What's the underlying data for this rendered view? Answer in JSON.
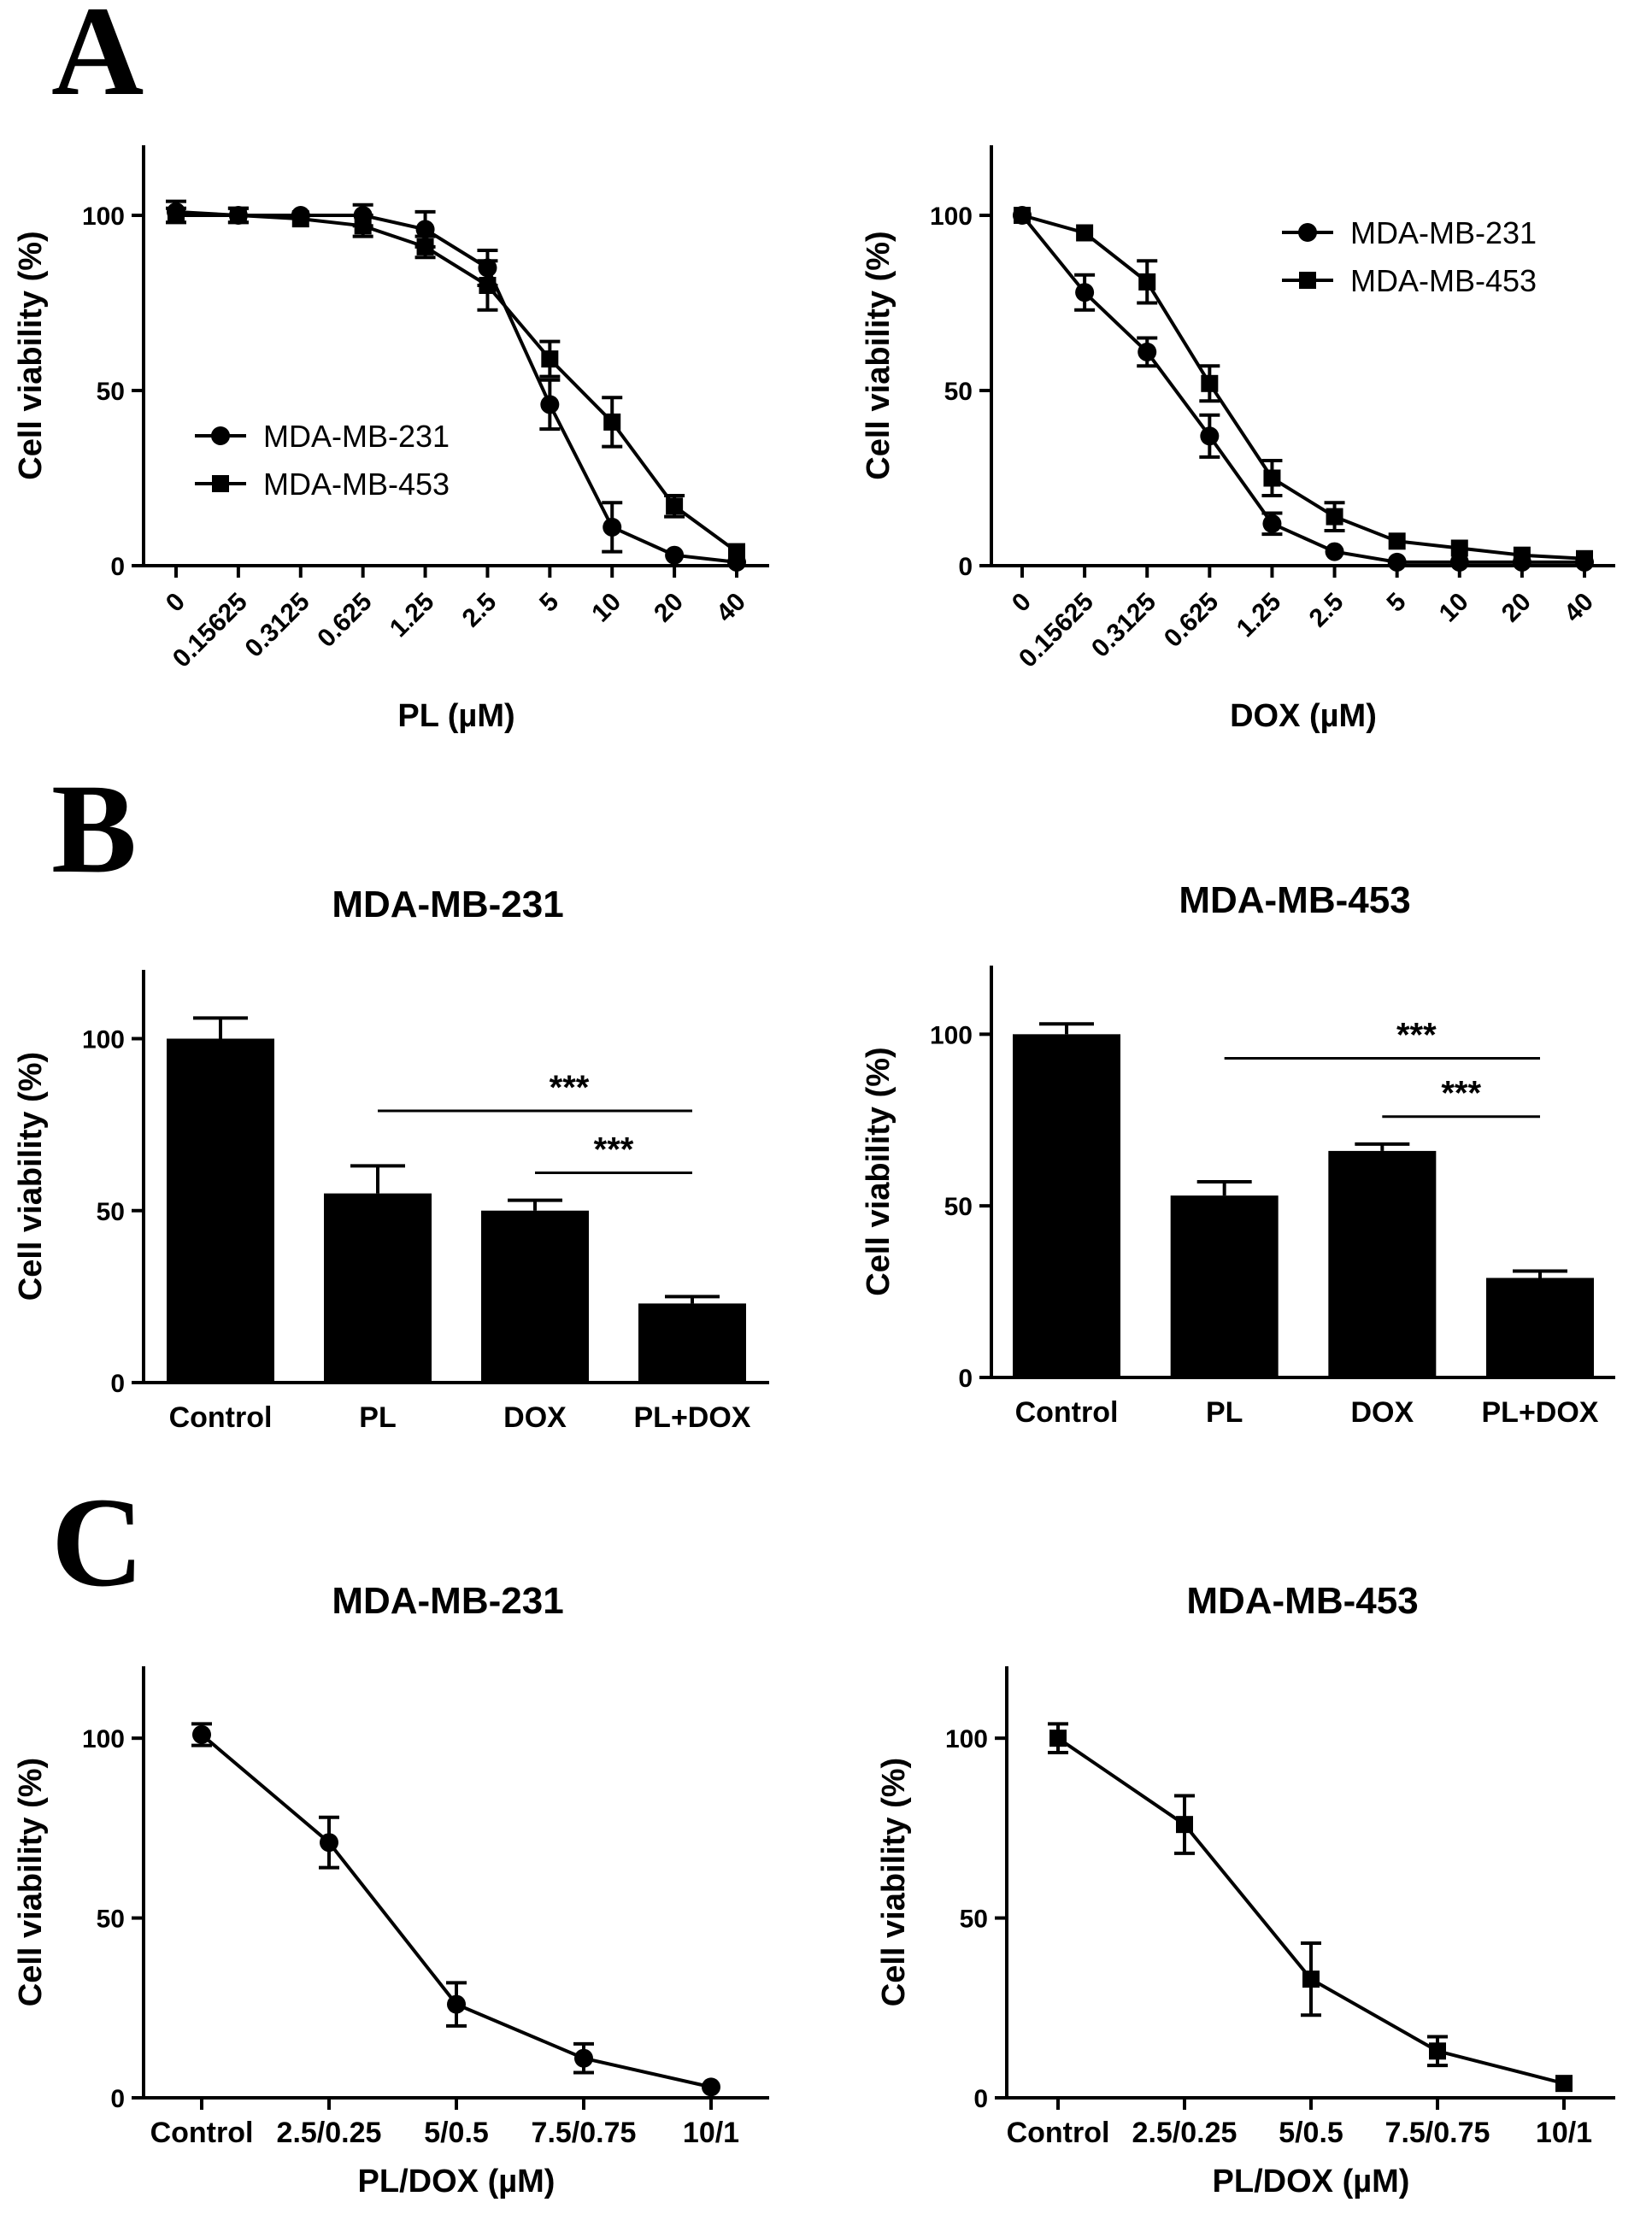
{
  "panels": {
    "a": "A",
    "b": "B",
    "c": "C"
  },
  "chart_data": [
    {
      "id": "A1",
      "panel": "A",
      "type": "line",
      "title": "",
      "xlabel": "PL (µM)",
      "ylabel": "Cell viability (%)",
      "ylim": [
        0,
        120
      ],
      "yticks": [
        0,
        50,
        100
      ],
      "categories": [
        "0",
        "0.15625",
        "0.3125",
        "0.625",
        "1.25",
        "2.5",
        "5",
        "10",
        "20",
        "40"
      ],
      "legend": "middle-left",
      "series": [
        {
          "name": "MDA-MB-231",
          "marker": "circle",
          "values": [
            101,
            100,
            100,
            100,
            96,
            85,
            46,
            11,
            3,
            1
          ],
          "errors": [
            3,
            2,
            1,
            3,
            5,
            5,
            7,
            7,
            1,
            1
          ]
        },
        {
          "name": "MDA-MB-453",
          "marker": "square",
          "values": [
            100,
            100,
            99,
            97,
            91,
            80,
            59,
            41,
            17,
            4
          ],
          "errors": [
            2,
            2,
            1,
            3,
            3,
            7,
            5,
            7,
            3,
            1
          ]
        }
      ]
    },
    {
      "id": "A2",
      "panel": "A",
      "type": "line",
      "title": "",
      "xlabel": "DOX (µM)",
      "ylabel": "Cell viability (%)",
      "ylim": [
        0,
        120
      ],
      "yticks": [
        0,
        50,
        100
      ],
      "categories": [
        "0",
        "0.15625",
        "0.3125",
        "0.625",
        "1.25",
        "2.5",
        "5",
        "10",
        "20",
        "40"
      ],
      "legend": "top-right",
      "series": [
        {
          "name": "MDA-MB-231",
          "marker": "circle",
          "values": [
            100,
            78,
            61,
            37,
            12,
            4,
            1,
            1,
            1,
            1
          ],
          "errors": [
            1,
            5,
            4,
            6,
            3,
            1,
            1,
            1,
            1,
            1
          ]
        },
        {
          "name": "MDA-MB-453",
          "marker": "square",
          "values": [
            100,
            95,
            81,
            52,
            25,
            14,
            7,
            5,
            3,
            2
          ],
          "errors": [
            1,
            1,
            6,
            5,
            5,
            4,
            1,
            1,
            1,
            1
          ]
        }
      ]
    },
    {
      "id": "B1",
      "panel": "B",
      "type": "bar",
      "title": "MDA-MB-231",
      "xlabel": "",
      "ylabel": "Cell viability (%)",
      "ylim": [
        0,
        120
      ],
      "yticks": [
        0,
        50,
        100
      ],
      "categories": [
        "Control",
        "PL",
        "DOX",
        "PL+DOX"
      ],
      "values": [
        100,
        55,
        50,
        23
      ],
      "errors": [
        6,
        8,
        3,
        2
      ],
      "significance": [
        {
          "from": 1,
          "to": 3,
          "label": "***",
          "level": 79
        },
        {
          "from": 2,
          "to": 3,
          "label": "***",
          "level": 61
        }
      ]
    },
    {
      "id": "B2",
      "panel": "B",
      "type": "bar",
      "title": "MDA-MB-453",
      "xlabel": "",
      "ylabel": "Cell viability (%)",
      "ylim": [
        0,
        120
      ],
      "yticks": [
        0,
        50,
        100
      ],
      "categories": [
        "Control",
        "PL",
        "DOX",
        "PL+DOX"
      ],
      "values": [
        100,
        53,
        66,
        29
      ],
      "errors": [
        3,
        4,
        2,
        2
      ],
      "significance": [
        {
          "from": 1,
          "to": 3,
          "label": "***",
          "level": 93
        },
        {
          "from": 2,
          "to": 3,
          "label": "***",
          "level": 76
        }
      ]
    },
    {
      "id": "C1",
      "panel": "C",
      "type": "line",
      "title": "MDA-MB-231",
      "xlabel": "PL/DOX (µM)",
      "ylabel": "Cell viability (%)",
      "ylim": [
        0,
        120
      ],
      "yticks": [
        0,
        50,
        100
      ],
      "categories": [
        "Control",
        "2.5/0.25",
        "5/0.5",
        "7.5/0.75",
        "10/1"
      ],
      "series": [
        {
          "name": "MDA-MB-231",
          "marker": "circle",
          "values": [
            101,
            71,
            26,
            11,
            3
          ],
          "errors": [
            3,
            7,
            6,
            4,
            1
          ]
        }
      ]
    },
    {
      "id": "C2",
      "panel": "C",
      "type": "line",
      "title": "MDA-MB-453",
      "xlabel": "PL/DOX (µM)",
      "ylabel": "Cell viability (%)",
      "ylim": [
        0,
        120
      ],
      "yticks": [
        0,
        50,
        100
      ],
      "categories": [
        "Control",
        "2.5/0.25",
        "5/0.5",
        "7.5/0.75",
        "10/1"
      ],
      "series": [
        {
          "name": "MDA-MB-453",
          "marker": "square",
          "values": [
            100,
            76,
            33,
            13,
            4
          ],
          "errors": [
            4,
            8,
            10,
            4,
            1
          ]
        }
      ]
    }
  ]
}
